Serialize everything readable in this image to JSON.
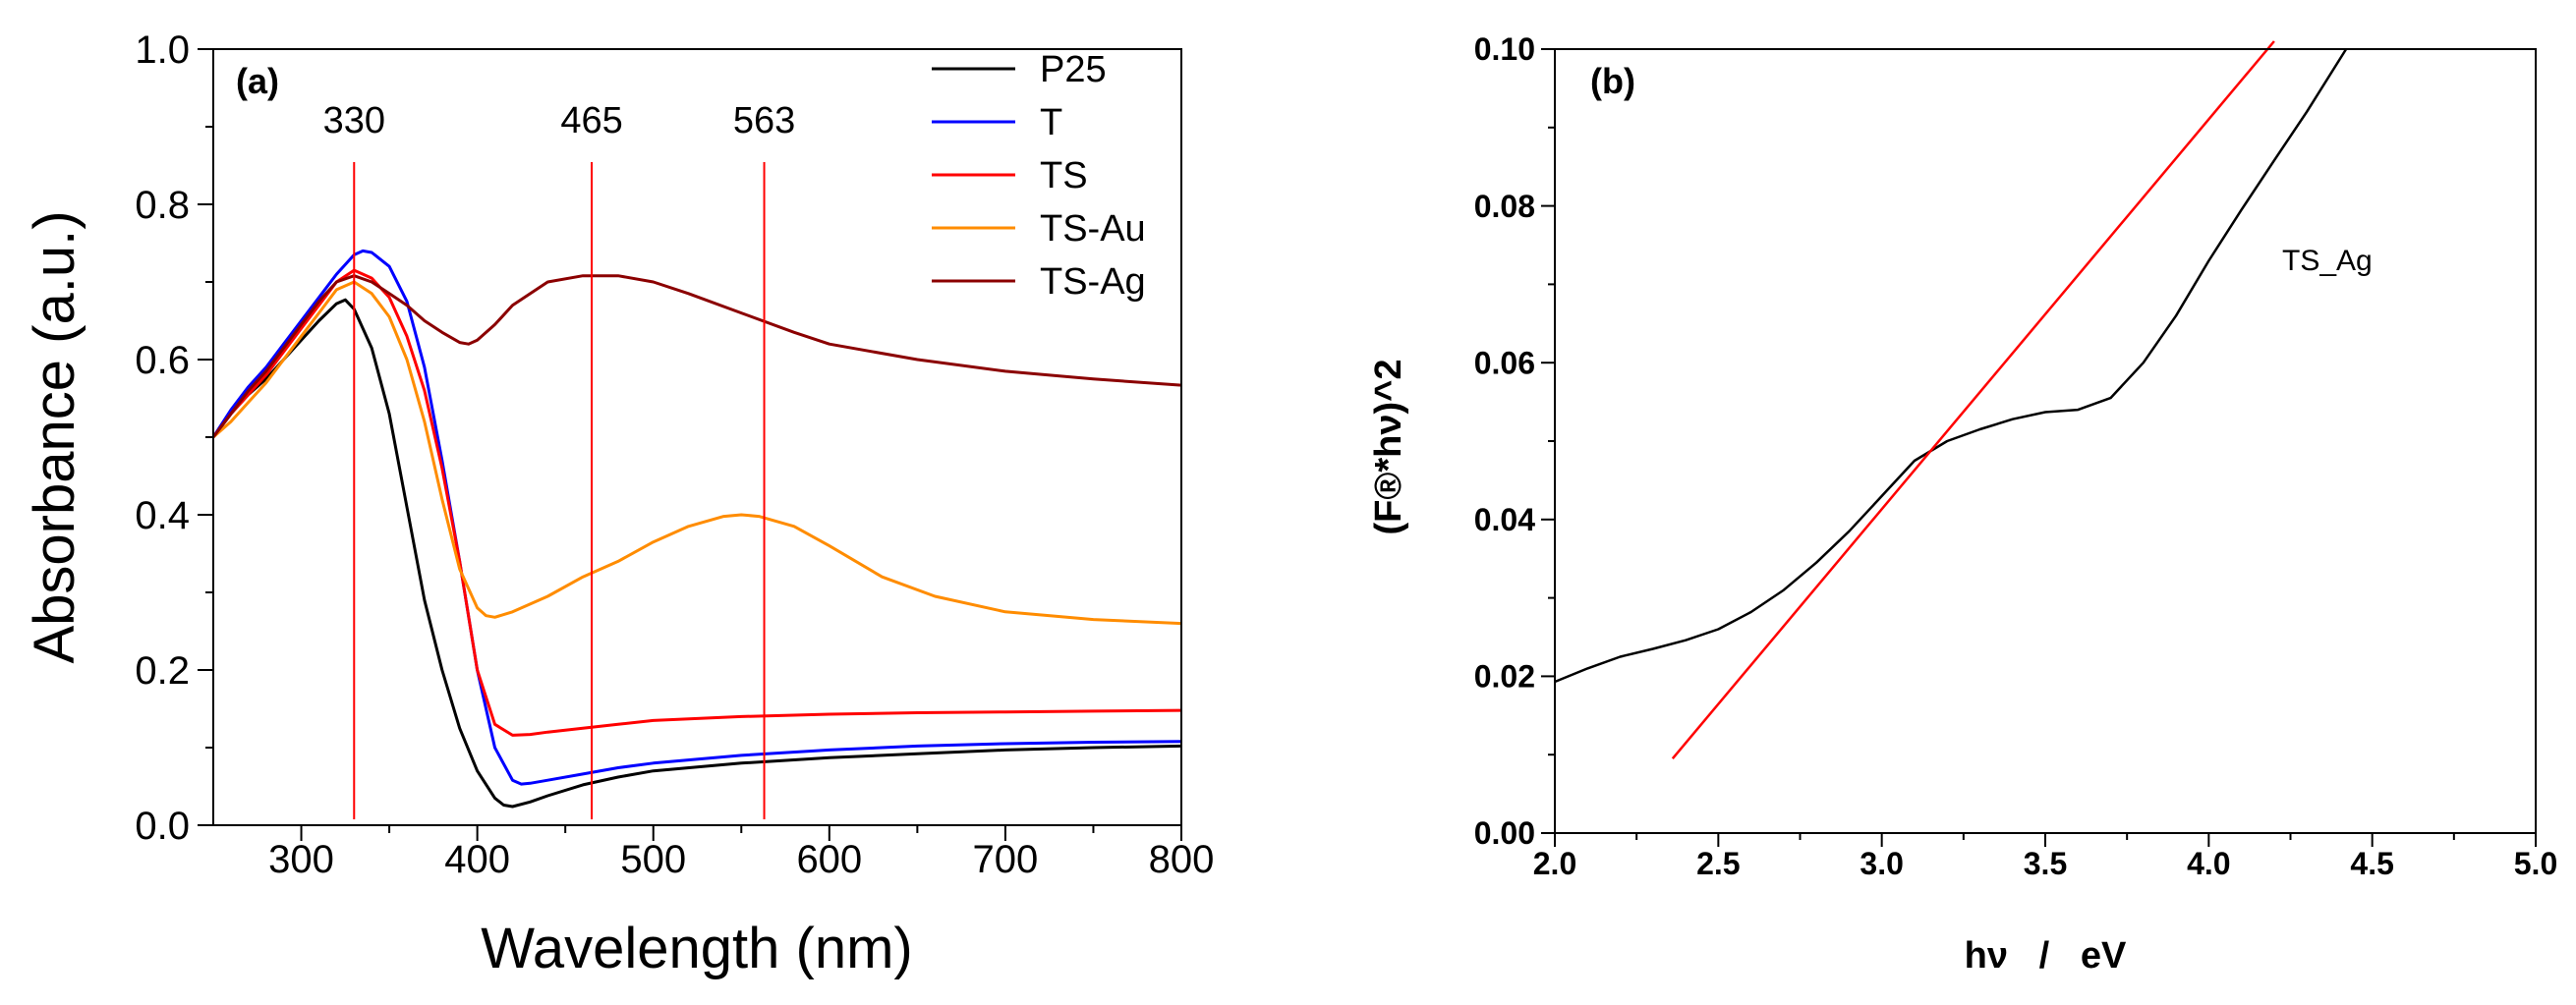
{
  "chart_data": [
    {
      "panel": "(a)",
      "type": "line",
      "title": "",
      "xlabel": "Wavelength (nm)",
      "ylabel": "Absorbance (a.u.)",
      "xlim": [
        250,
        800
      ],
      "ylim": [
        0.0,
        1.0
      ],
      "xticks": [
        300,
        400,
        500,
        600,
        700,
        800
      ],
      "xtick_labels": [
        "300",
        "400",
        "500",
        "600",
        "700",
        "800"
      ],
      "yticks": [
        0.0,
        0.2,
        0.4,
        0.6,
        0.8,
        1.0
      ],
      "ytick_labels": [
        "0.0",
        "0.2",
        "0.4",
        "0.6",
        "0.8",
        "1.0"
      ],
      "grid": false,
      "legend_position": "top-right",
      "series": [
        {
          "name": "P25",
          "color": "#000000",
          "x": [
            250,
            260,
            270,
            280,
            290,
            300,
            310,
            320,
            325,
            330,
            340,
            350,
            360,
            370,
            380,
            390,
            400,
            410,
            415,
            420,
            430,
            440,
            460,
            480,
            500,
            550,
            600,
            650,
            700,
            750,
            800
          ],
          "y": [
            0.5,
            0.53,
            0.555,
            0.575,
            0.6,
            0.625,
            0.65,
            0.672,
            0.677,
            0.665,
            0.615,
            0.53,
            0.41,
            0.29,
            0.2,
            0.125,
            0.07,
            0.035,
            0.026,
            0.024,
            0.03,
            0.038,
            0.052,
            0.062,
            0.07,
            0.08,
            0.087,
            0.092,
            0.097,
            0.1,
            0.102
          ]
        },
        {
          "name": "T",
          "color": "#0000ff",
          "x": [
            250,
            260,
            270,
            280,
            290,
            300,
            310,
            320,
            330,
            335,
            340,
            350,
            360,
            370,
            380,
            390,
            400,
            410,
            420,
            425,
            430,
            440,
            460,
            480,
            500,
            550,
            600,
            650,
            700,
            750,
            800
          ],
          "y": [
            0.5,
            0.535,
            0.565,
            0.59,
            0.62,
            0.65,
            0.68,
            0.71,
            0.735,
            0.74,
            0.738,
            0.72,
            0.675,
            0.59,
            0.47,
            0.34,
            0.2,
            0.1,
            0.058,
            0.053,
            0.054,
            0.058,
            0.066,
            0.074,
            0.08,
            0.09,
            0.097,
            0.102,
            0.105,
            0.107,
            0.108
          ]
        },
        {
          "name": "TS",
          "color": "#ff0000",
          "x": [
            250,
            260,
            270,
            280,
            290,
            300,
            310,
            320,
            330,
            340,
            350,
            360,
            370,
            380,
            390,
            400,
            410,
            420,
            430,
            440,
            460,
            480,
            500,
            550,
            600,
            650,
            700,
            750,
            800
          ],
          "y": [
            0.5,
            0.53,
            0.555,
            0.58,
            0.61,
            0.64,
            0.67,
            0.7,
            0.715,
            0.705,
            0.68,
            0.63,
            0.56,
            0.46,
            0.34,
            0.2,
            0.13,
            0.116,
            0.117,
            0.12,
            0.125,
            0.13,
            0.135,
            0.14,
            0.143,
            0.145,
            0.146,
            0.147,
            0.148
          ]
        },
        {
          "name": "TS-Au",
          "color": "#ff8c00",
          "x": [
            250,
            260,
            270,
            280,
            290,
            300,
            310,
            320,
            330,
            340,
            350,
            360,
            370,
            380,
            390,
            400,
            405,
            410,
            420,
            440,
            460,
            480,
            500,
            520,
            540,
            550,
            560,
            580,
            600,
            630,
            660,
            700,
            750,
            800
          ],
          "y": [
            0.5,
            0.52,
            0.545,
            0.57,
            0.6,
            0.63,
            0.66,
            0.69,
            0.7,
            0.685,
            0.655,
            0.6,
            0.52,
            0.42,
            0.33,
            0.28,
            0.27,
            0.268,
            0.275,
            0.295,
            0.32,
            0.34,
            0.365,
            0.385,
            0.398,
            0.4,
            0.398,
            0.385,
            0.36,
            0.32,
            0.295,
            0.275,
            0.265,
            0.26
          ]
        },
        {
          "name": "TS-Ag",
          "color": "#8b0000",
          "x": [
            250,
            260,
            270,
            280,
            290,
            300,
            310,
            320,
            330,
            340,
            350,
            360,
            370,
            380,
            390,
            395,
            400,
            410,
            420,
            440,
            460,
            480,
            500,
            520,
            550,
            580,
            600,
            650,
            700,
            750,
            800
          ],
          "y": [
            0.5,
            0.53,
            0.56,
            0.585,
            0.615,
            0.645,
            0.675,
            0.7,
            0.708,
            0.7,
            0.685,
            0.67,
            0.65,
            0.635,
            0.622,
            0.62,
            0.625,
            0.645,
            0.67,
            0.7,
            0.708,
            0.708,
            0.7,
            0.685,
            0.66,
            0.635,
            0.62,
            0.6,
            0.585,
            0.575,
            0.567
          ]
        }
      ],
      "vertical_markers": [
        {
          "x": 330,
          "label": "330",
          "color": "#ff0000"
        },
        {
          "x": 465,
          "label": "465",
          "color": "#ff0000"
        },
        {
          "x": 563,
          "label": "563",
          "color": "#ff0000"
        }
      ]
    },
    {
      "panel": "(b)",
      "type": "line",
      "title": "",
      "xlabel": "hν   /   eV",
      "ylabel": "(F®*hν)^2",
      "xlim": [
        2.0,
        5.0
      ],
      "ylim": [
        0.0,
        0.1
      ],
      "xticks": [
        2.0,
        2.5,
        3.0,
        3.5,
        4.0,
        4.5,
        5.0
      ],
      "xtick_labels": [
        "2.0",
        "2.5",
        "3.0",
        "3.5",
        "4.0",
        "4.5",
        "5.0"
      ],
      "yticks": [
        0.0,
        0.02,
        0.04,
        0.06,
        0.08,
        0.1
      ],
      "ytick_labels": [
        "0.00",
        "0.02",
        "0.04",
        "0.06",
        "0.08",
        "0.10"
      ],
      "grid": false,
      "annotation": "TS_Ag",
      "series": [
        {
          "name": "TS_Ag",
          "color": "#000000",
          "x": [
            2.0,
            2.1,
            2.2,
            2.3,
            2.4,
            2.5,
            2.6,
            2.7,
            2.8,
            2.9,
            3.0,
            3.1,
            3.2,
            3.3,
            3.4,
            3.5,
            3.6,
            3.7,
            3.8,
            3.9,
            4.0,
            4.1,
            4.2,
            4.3,
            4.42
          ],
          "y": [
            0.0193,
            0.021,
            0.0225,
            0.0235,
            0.0246,
            0.026,
            0.0282,
            0.031,
            0.0345,
            0.0385,
            0.043,
            0.0475,
            0.05,
            0.0515,
            0.0528,
            0.0537,
            0.054,
            0.0555,
            0.06,
            0.066,
            0.073,
            0.0795,
            0.0858,
            0.092,
            0.1
          ]
        },
        {
          "name": "tangent",
          "color": "#ff0000",
          "x": [
            2.36,
            4.2
          ],
          "y": [
            0.0095,
            0.101
          ]
        }
      ]
    }
  ],
  "legend": [
    "P25",
    "T",
    "TS",
    "TS-Au",
    "TS-Ag"
  ]
}
